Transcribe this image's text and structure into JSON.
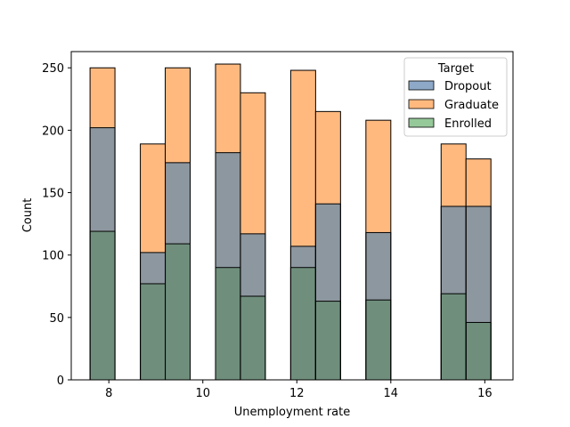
{
  "chart_data": {
    "type": "bar",
    "chart_style": "overlaid histogram",
    "title": "",
    "xlabel": "Unemployment rate",
    "ylabel": "Count",
    "xlim": [
      7.2,
      16.6
    ],
    "ylim": [
      0,
      263
    ],
    "xticks": [
      8,
      10,
      12,
      14,
      16
    ],
    "yticks": [
      0,
      50,
      100,
      150,
      200,
      250
    ],
    "bins": [
      [
        7.6,
        8.13
      ],
      [
        8.13,
        8.67
      ],
      [
        8.67,
        9.2
      ],
      [
        9.2,
        9.73
      ],
      [
        9.73,
        10.27
      ],
      [
        10.27,
        10.8
      ],
      [
        10.8,
        11.33
      ],
      [
        11.33,
        11.87
      ],
      [
        11.87,
        12.4
      ],
      [
        12.4,
        12.93
      ],
      [
        12.93,
        13.47
      ],
      [
        13.47,
        14.0
      ],
      [
        14.0,
        14.53
      ],
      [
        14.53,
        15.07
      ],
      [
        15.07,
        15.6
      ],
      [
        15.6,
        16.13
      ]
    ],
    "series": [
      {
        "name": "Graduate",
        "color": "#ffb97f",
        "values": [
          250,
          0,
          189,
          250,
          0,
          253,
          230,
          0,
          248,
          215,
          0,
          208,
          0,
          0,
          189,
          177
        ]
      },
      {
        "name": "Dropout",
        "color": "#8ea9c8",
        "values": [
          202,
          0,
          102,
          174,
          0,
          182,
          117,
          0,
          107,
          141,
          0,
          118,
          0,
          0,
          139,
          139
        ]
      },
      {
        "name": "Enrolled",
        "color": "#96c99a",
        "values": [
          119,
          0,
          77,
          109,
          0,
          90,
          67,
          0,
          90,
          63,
          0,
          64,
          0,
          0,
          69,
          46
        ]
      }
    ],
    "overlap_colors": {
      "dropout_graduate": "#8d979f",
      "all_three": "#6f8f7c"
    },
    "legend": {
      "title": "Target",
      "position": "top-right",
      "entries": [
        {
          "label": "Dropout",
          "color": "#8ea9c8"
        },
        {
          "label": "Graduate",
          "color": "#ffb97f"
        },
        {
          "label": "Enrolled",
          "color": "#96c99a"
        }
      ]
    },
    "grid": false
  }
}
